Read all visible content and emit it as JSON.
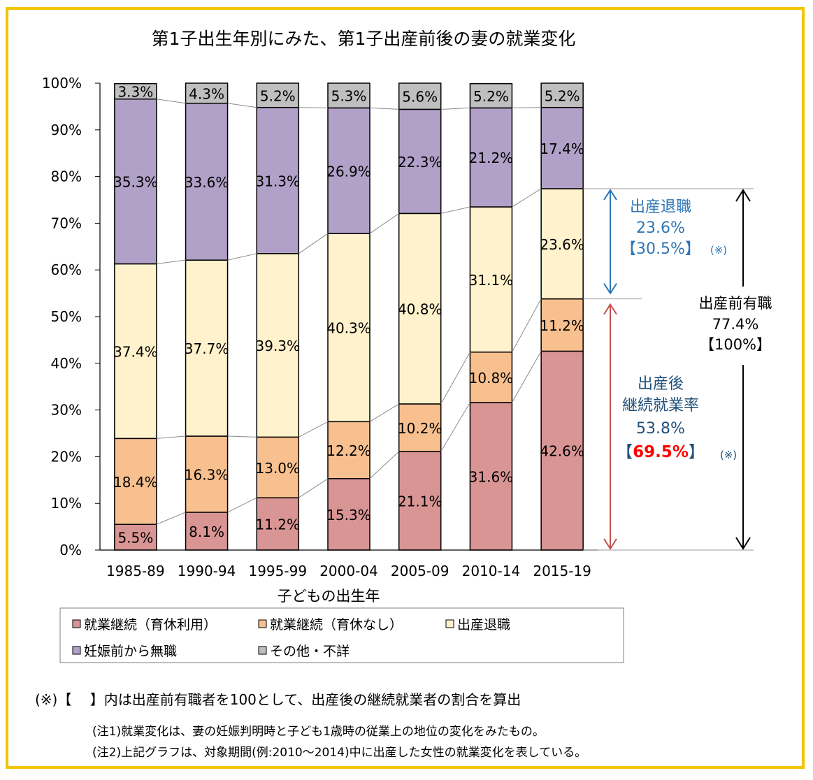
{
  "chart_data": {
    "type": "bar",
    "stacked": true,
    "percent": true,
    "title": "第1子出生年別にみた、第1子出産前後の妻の就業変化",
    "xlabel": "子どもの出生年",
    "ylim": [
      0,
      100
    ],
    "y_ticks": [
      "0%",
      "10%",
      "20%",
      "30%",
      "40%",
      "50%",
      "60%",
      "70%",
      "80%",
      "90%",
      "100%"
    ],
    "categories": [
      "1985-89",
      "1990-94",
      "1995-99",
      "2000-04",
      "2005-09",
      "2010-14",
      "2015-19"
    ],
    "series": [
      {
        "name": "就業継続（育休利用）",
        "color": "#d99594",
        "values": [
          5.5,
          8.1,
          11.2,
          15.3,
          21.1,
          31.6,
          42.6
        ],
        "labels": [
          "5.5%",
          "8.1%",
          "11.2%",
          "15.3%",
          "21.1%",
          "31.6%",
          "42.6%"
        ]
      },
      {
        "name": "就業継続（育休なし）",
        "color": "#f8c08f",
        "values": [
          18.4,
          16.3,
          13.0,
          12.2,
          10.2,
          10.8,
          11.2
        ],
        "labels": [
          "18.4%",
          "16.3%",
          "13.0%",
          "12.2%",
          "10.2%",
          "10.8%",
          "11.2%"
        ]
      },
      {
        "name": "出産退職",
        "color": "#fff2cc",
        "values": [
          37.4,
          37.7,
          39.3,
          40.3,
          40.8,
          31.1,
          23.6
        ],
        "labels": [
          "37.4%",
          "37.7%",
          "39.3%",
          "40.3%",
          "40.8%",
          "31.1%",
          "23.6%"
        ]
      },
      {
        "name": "妊娠前から無職",
        "color": "#b1a0c7",
        "values": [
          35.3,
          33.6,
          31.3,
          26.9,
          22.3,
          21.2,
          17.4
        ],
        "labels": [
          "35.3%",
          "33.6%",
          "31.3%",
          "26.9%",
          "22.3%",
          "21.2%",
          "17.4%"
        ]
      },
      {
        "name": "その他・不詳",
        "color": "#bfbfbf",
        "values": [
          3.3,
          4.3,
          5.2,
          5.3,
          5.6,
          5.2,
          5.2
        ],
        "labels": [
          "3.3%",
          "4.3%",
          "5.2%",
          "5.3%",
          "5.6%",
          "5.2%",
          "5.2%"
        ]
      }
    ],
    "legend": {
      "placement": "bottom"
    },
    "annotations": {
      "resign": {
        "line1": "出産退職",
        "line2": "23.6%",
        "line3": "【30.5%】",
        "note": "(※)",
        "color": "#2e75b6"
      },
      "employed_before": {
        "line1": "出産前有職",
        "line2": "77.4%",
        "line3": "【100%】"
      },
      "continue_rate": {
        "line1": "出産後",
        "line2": "継続就業率",
        "line3": "53.8%",
        "line4": "【69.5%】",
        "highlight": "69.5%",
        "note": "(※)",
        "color": "#1f4e79",
        "highlight_color": "#ff0000"
      }
    }
  },
  "footnotes": {
    "main": "(※)【　 】内は出産前有職者を100として、出産後の継続就業者の割合を算出",
    "note1": "(注1)就業変化は、妻の妊娠判明時と子ども1歳時の従業上の地位の変化をみたもの。",
    "note2": "(注2)上記グラフは、対象期間(例:2010～2014)中に出産した女性の就業変化を表している。"
  }
}
